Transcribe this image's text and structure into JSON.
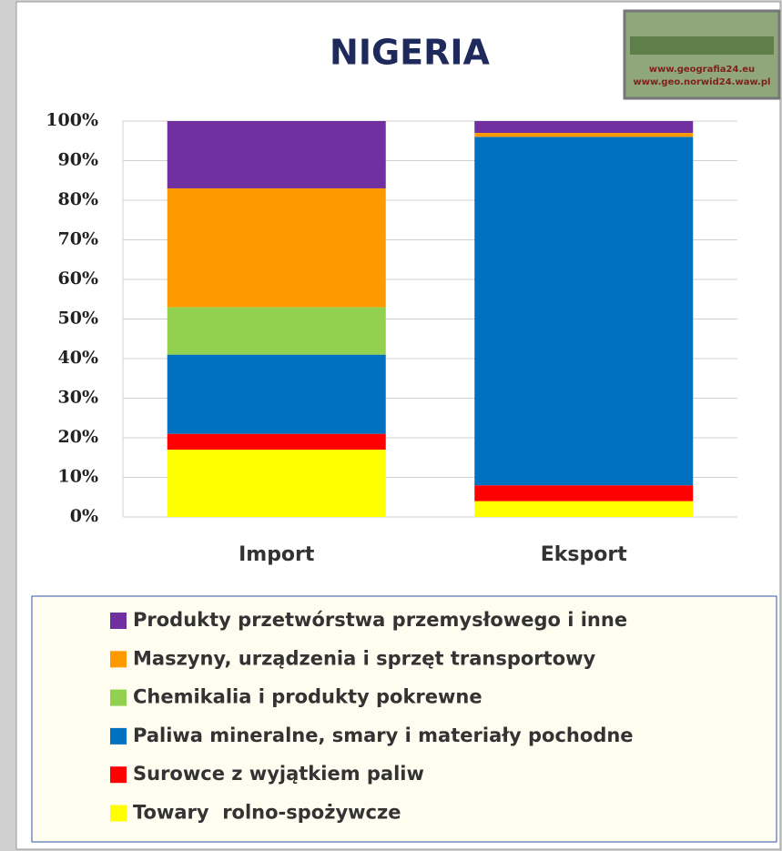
{
  "chart_data": {
    "type": "stacked_bar",
    "title": "NIGERIA",
    "logo_lines": [
      "www.geografia24.eu",
      "www.geo.norwid24.waw.pl"
    ],
    "categories": [
      "Import",
      "Eksport"
    ],
    "series": [
      {
        "name": "Towary  rolno-spożywcze",
        "color": "#ffff00",
        "values": [
          17,
          4
        ]
      },
      {
        "name": "Surowce z wyjątkiem paliw",
        "color": "#ff0000",
        "values": [
          4,
          4
        ]
      },
      {
        "name": "Paliwa mineralne, smary i materiały pochodne",
        "color": "#0070c0",
        "values": [
          20,
          88
        ]
      },
      {
        "name": "Chemikalia i produkty pokrewne",
        "color": "#92d050",
        "values": [
          12,
          0
        ]
      },
      {
        "name": "Maszyny, urządzenia i sprzęt transportowy",
        "color": "#ff9900",
        "values": [
          30,
          1
        ]
      },
      {
        "name": "Produkty przetwórstwa przemysłowego i inne",
        "color": "#7030a0",
        "values": [
          17,
          3
        ]
      }
    ],
    "ylim": [
      0,
      100
    ],
    "yticks": [
      {
        "value": 0,
        "label": "0%"
      },
      {
        "value": 10,
        "label": "10%"
      },
      {
        "value": 20,
        "label": "20%"
      },
      {
        "value": 30,
        "label": "30%"
      },
      {
        "value": 40,
        "label": "40%"
      },
      {
        "value": 50,
        "label": "50%"
      },
      {
        "value": 60,
        "label": "60%"
      },
      {
        "value": 70,
        "label": "70%"
      },
      {
        "value": 80,
        "label": "80%"
      },
      {
        "value": 90,
        "label": "90%"
      },
      {
        "value": 100,
        "label": "100%"
      }
    ],
    "grid": true
  }
}
